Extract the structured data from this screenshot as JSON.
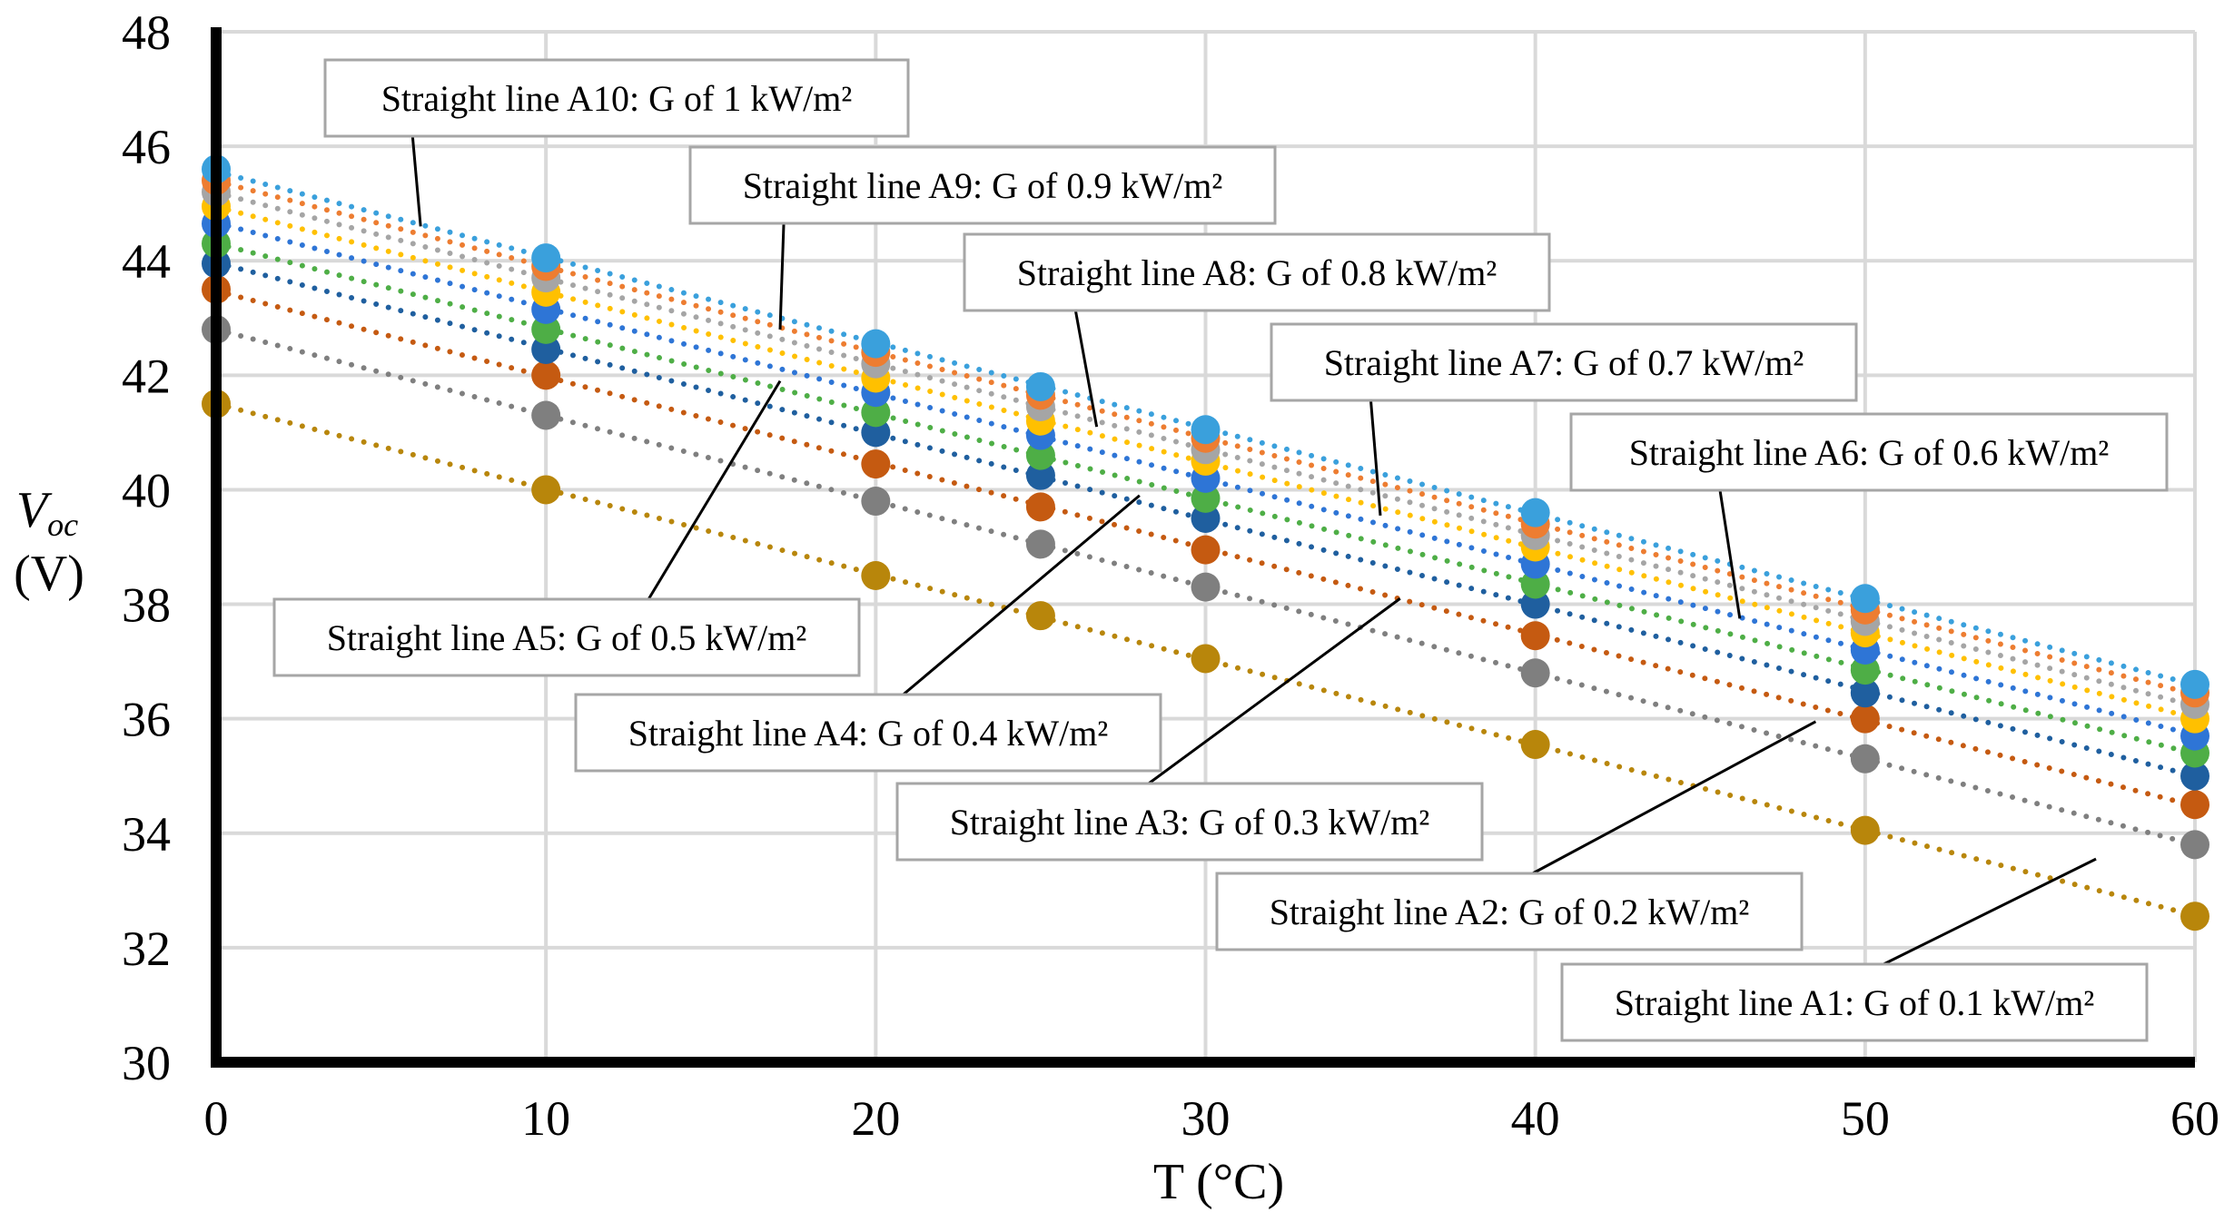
{
  "chart_data": {
    "type": "scatter",
    "xlabel": "T (°C)",
    "ylabel_main": "V",
    "ylabel_sub": "oc",
    "ylabel_unit": "(V)",
    "xlim": [
      0,
      60
    ],
    "ylim": [
      30,
      48
    ],
    "xticks": [
      0,
      10,
      20,
      30,
      40,
      50,
      60
    ],
    "yticks": [
      30,
      32,
      34,
      36,
      38,
      40,
      42,
      44,
      46,
      48
    ],
    "grid": true,
    "x": [
      0,
      10,
      20,
      25,
      30,
      40,
      50,
      60
    ],
    "series": [
      {
        "name": "A1",
        "color": "#b8860b",
        "values": [
          41.5,
          40.0,
          38.5,
          37.8,
          37.05,
          35.55,
          34.05,
          32.55
        ]
      },
      {
        "name": "A2",
        "color": "#7f7f7f",
        "values": [
          42.8,
          41.3,
          39.8,
          39.05,
          38.3,
          36.8,
          35.3,
          33.8
        ]
      },
      {
        "name": "A3",
        "color": "#c55a11",
        "values": [
          43.5,
          42.0,
          40.45,
          39.7,
          38.95,
          37.45,
          36.0,
          34.5
        ]
      },
      {
        "name": "A4",
        "color": "#1f5f9f",
        "values": [
          43.95,
          42.45,
          41.0,
          40.25,
          39.5,
          38.0,
          36.45,
          35.0
        ]
      },
      {
        "name": "A5",
        "color": "#4eae46",
        "values": [
          44.3,
          42.8,
          41.35,
          40.6,
          39.85,
          38.35,
          36.85,
          35.4
        ]
      },
      {
        "name": "A6",
        "color": "#2e75d6",
        "values": [
          44.65,
          43.15,
          41.7,
          40.95,
          40.2,
          38.7,
          37.2,
          35.7
        ]
      },
      {
        "name": "A7",
        "color": "#ffc000",
        "values": [
          44.95,
          43.45,
          41.95,
          41.2,
          40.5,
          39.0,
          37.5,
          36.0
        ]
      },
      {
        "name": "A8",
        "color": "#a5a5a5",
        "values": [
          45.2,
          43.7,
          42.2,
          41.45,
          40.7,
          39.2,
          37.7,
          36.25
        ]
      },
      {
        "name": "A9",
        "color": "#ed7d31",
        "values": [
          45.4,
          43.9,
          42.4,
          41.65,
          40.9,
          39.4,
          37.9,
          36.45
        ]
      },
      {
        "name": "A10",
        "color": "#3aa0dc",
        "values": [
          45.6,
          44.05,
          42.55,
          41.8,
          41.05,
          39.6,
          38.1,
          36.6
        ]
      }
    ],
    "annotations": [
      {
        "series": "A10",
        "text": "Straight line A10: G of 1 kW/m²",
        "at": [
          6.2,
          44.6
        ]
      },
      {
        "series": "A9",
        "text": "Straight line A9: G of 0.9 kW/m²",
        "at": [
          17.1,
          42.8
        ]
      },
      {
        "series": "A8",
        "text": "Straight line A8: G of 0.8 kW/m²",
        "at": [
          26.7,
          41.1
        ]
      },
      {
        "series": "A7",
        "text": "Straight line A7: G of 0.7 kW/m²",
        "at": [
          35.3,
          39.55
        ]
      },
      {
        "series": "A6",
        "text": "Straight line A6: G of 0.6 kW/m²",
        "at": [
          46.2,
          37.75
        ]
      },
      {
        "series": "A5",
        "text": "Straight line A5: G of 0.5 kW/m²",
        "at": [
          17.1,
          41.9
        ]
      },
      {
        "series": "A4",
        "text": "Straight line A4: G of 0.4 kW/m²",
        "at": [
          28.0,
          39.9
        ]
      },
      {
        "series": "A3",
        "text": "Straight line A3: G of 0.3 kW/m²",
        "at": [
          35.9,
          38.1
        ]
      },
      {
        "series": "A2",
        "text": "Straight line A2: G of 0.2 kW/m²",
        "at": [
          48.5,
          35.95
        ]
      },
      {
        "series": "A1",
        "text": "Straight line A1: G of 0.1 kW/m²",
        "at": [
          57.0,
          33.55
        ]
      }
    ]
  }
}
